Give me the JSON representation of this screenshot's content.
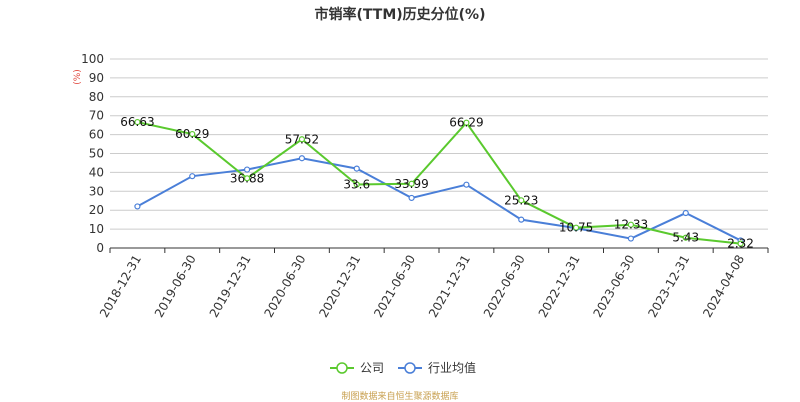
{
  "title": "市销率(TTM)历史分位(%)",
  "source": "制图数据来自恒生聚源数据库",
  "chart_data": {
    "type": "line",
    "title": "市销率(TTM)历史分位(%)",
    "ylabel": "(%)",
    "ylim": [
      0,
      100
    ],
    "yticks": [
      "0",
      "10",
      "20",
      "30",
      "40",
      "50",
      "60",
      "70",
      "80",
      "90",
      "100"
    ],
    "categories": [
      "2018-12-31",
      "2019-06-30",
      "2019-12-31",
      "2020-06-30",
      "2020-12-31",
      "2021-06-30",
      "2021-12-31",
      "2022-06-30",
      "2022-12-31",
      "2023-06-30",
      "2023-12-31",
      "2024-04-08"
    ],
    "grid": true,
    "legend": "bottom-center",
    "series": [
      {
        "name": "公司",
        "color": "#5ac92e",
        "values": [
          66.63,
          60.29,
          36.88,
          57.52,
          33.6,
          33.99,
          66.29,
          25.23,
          10.75,
          12.33,
          5.43,
          2.32
        ],
        "labels": [
          "66.63",
          "60.29",
          "36.88",
          "57.52",
          "33.6",
          "33.99",
          "66.29",
          "25.23",
          "10.75",
          "12.33",
          "5.43",
          "2.32"
        ]
      },
      {
        "name": "行业均值",
        "color": "#4a7fd8",
        "values": [
          22,
          38,
          41.5,
          47.5,
          42,
          26.5,
          33.5,
          15,
          10.5,
          5,
          18.5,
          4
        ]
      }
    ]
  }
}
